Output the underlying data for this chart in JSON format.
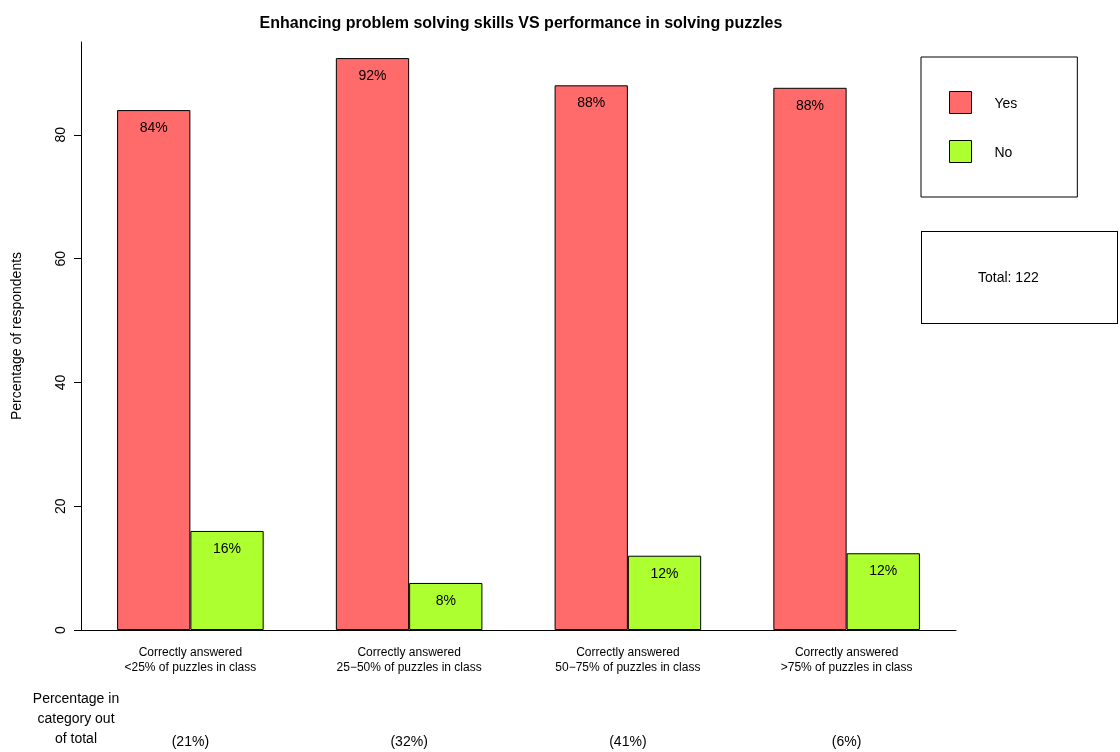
{
  "chart_data": {
    "type": "bar",
    "title": "Enhancing problem solving skills VS performance in solving puzzles",
    "ylabel": "Percentage of respondents",
    "categories": [
      "Correctly answered\n<25% of puzzles in class",
      "Correctly answered\n25−50% of puzzles in class",
      "Correctly answered\n50−75% of puzzles in class",
      "Correctly answered\n>75% of puzzles in class"
    ],
    "series": [
      {
        "name": "Yes",
        "color": "#ff6a6a",
        "values": [
          84,
          92.4,
          88,
          87.6
        ],
        "value_labels": [
          "84%",
          "92%",
          "88%",
          "88%"
        ]
      },
      {
        "name": "No",
        "color": "#adff2f",
        "values": [
          16,
          7.6,
          12,
          12.4
        ],
        "value_labels": [
          "16%",
          "8%",
          "12%",
          "12%"
        ]
      }
    ],
    "ylim": [
      0,
      95
    ],
    "yticks": [
      0,
      20,
      40,
      60,
      80
    ],
    "grid": false,
    "legend": "top right",
    "annotations": [
      "Total: 122",
      "Percentage in\ncategory out\nof total",
      "(21%)",
      "(32%)",
      "(41%)",
      "(6%)"
    ]
  }
}
